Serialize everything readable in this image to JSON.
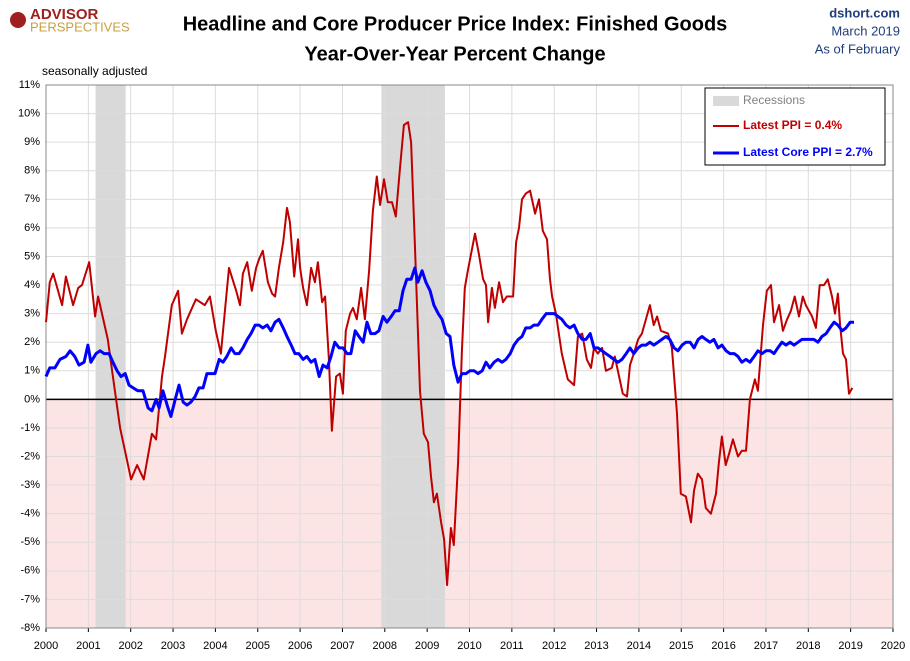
{
  "chart_data": {
    "type": "line",
    "logo": [
      "ADVISOR",
      "PERSPECTIVES"
    ],
    "title": "Headline and Core Producer Price Index: Finished Goods",
    "subtitle": "Year-Over-Year Percent Change",
    "source": [
      "dshort.com",
      "March 2019",
      "As of February"
    ],
    "note": "seasonally adjusted",
    "recession_label": "Recessions",
    "recessions": [
      [
        2001.17,
        2001.88
      ],
      [
        2007.92,
        2009.42
      ]
    ],
    "recession_color": "#d9d9d9",
    "legend": "upper right",
    "grid": true,
    "xlim": [
      2000,
      2020
    ],
    "xticks": [
      2000,
      2001,
      2002,
      2003,
      2004,
      2005,
      2006,
      2007,
      2008,
      2009,
      2010,
      2011,
      2012,
      2013,
      2014,
      2015,
      2016,
      2017,
      2018,
      2019,
      2020
    ],
    "ylim": [
      -8,
      11
    ],
    "yticks": [
      {
        "value": -8,
        "label": "-8%"
      },
      {
        "value": -7,
        "label": "-7%"
      },
      {
        "value": -6,
        "label": "-6%"
      },
      {
        "value": -5,
        "label": "-5%"
      },
      {
        "value": -4,
        "label": "-4%"
      },
      {
        "value": -3,
        "label": "-3%"
      },
      {
        "value": -2,
        "label": "-2%"
      },
      {
        "value": -1,
        "label": "-1%"
      },
      {
        "value": 0,
        "label": "0%"
      },
      {
        "value": 1,
        "label": "1%"
      },
      {
        "value": 2,
        "label": "2%"
      },
      {
        "value": 3,
        "label": "3%"
      },
      {
        "value": 4,
        "label": "4%"
      },
      {
        "value": 5,
        "label": "5%"
      },
      {
        "value": 6,
        "label": "6%"
      },
      {
        "value": 7,
        "label": "7%"
      },
      {
        "value": 8,
        "label": "8%"
      },
      {
        "value": 9,
        "label": "9%"
      },
      {
        "value": 10,
        "label": "10%"
      },
      {
        "value": 11,
        "label": "11%"
      }
    ],
    "series": [
      {
        "name": "Latest PPI = 0.4%",
        "color": "#c00000",
        "x": [
          2000,
          2000.09,
          2000.17,
          2000.38,
          2000.47,
          2000.64,
          2000.76,
          2000.85,
          2001.02,
          2001.16,
          2001.23,
          2001.46,
          2001.56,
          2001.75,
          2002.01,
          2002.15,
          2002.31,
          2002.5,
          2002.6,
          2002.74,
          2002.81,
          2002.97,
          2003.12,
          2003.21,
          2003.33,
          2003.54,
          2003.75,
          2003.87,
          2004.01,
          2004.13,
          2004.25,
          2004.32,
          2004.49,
          2004.58,
          2004.65,
          2004.75,
          2004.86,
          2004.96,
          2005.03,
          2005.12,
          2005.24,
          2005.34,
          2005.41,
          2005.5,
          2005.6,
          2005.69,
          2005.76,
          2005.86,
          2005.95,
          2006,
          2006.07,
          2006.16,
          2006.26,
          2006.35,
          2006.42,
          2006.52,
          2006.59,
          2006.68,
          2006.75,
          2006.85,
          2006.94,
          2007.01,
          2007.08,
          2007.18,
          2007.25,
          2007.34,
          2007.44,
          2007.53,
          2007.63,
          2007.72,
          2007.81,
          2007.89,
          2007.98,
          2008.07,
          2008.17,
          2008.26,
          2008.36,
          2008.45,
          2008.55,
          2008.62,
          2008.71,
          2008.83,
          2008.92,
          2009.02,
          2009.09,
          2009.16,
          2009.23,
          2009.33,
          2009.4,
          2009.47,
          2009.56,
          2009.63,
          2009.73,
          2009.82,
          2009.89,
          2009.96,
          2010.13,
          2010.22,
          2010.32,
          2010.39,
          2010.44,
          2010.53,
          2010.6,
          2010.7,
          2010.79,
          2010.88,
          2011.03,
          2011.1,
          2011.17,
          2011.24,
          2011.33,
          2011.43,
          2011.55,
          2011.64,
          2011.73,
          2011.83,
          2011.9,
          2011.95,
          2012.04,
          2012.18,
          2012.32,
          2012.47,
          2012.56,
          2012.66,
          2012.77,
          2012.87,
          2012.94,
          2013.03,
          2013.13,
          2013.22,
          2013.36,
          2013.43,
          2013.62,
          2013.72,
          2013.79,
          2013.88,
          2013.98,
          2014.07,
          2014.26,
          2014.35,
          2014.43,
          2014.52,
          2014.69,
          2014.78,
          2014.9,
          2014.99,
          2015.11,
          2015.23,
          2015.3,
          2015.39,
          2015.49,
          2015.58,
          2015.7,
          2015.82,
          2015.89,
          2015.96,
          2016.05,
          2016.13,
          2016.22,
          2016.34,
          2016.43,
          2016.53,
          2016.62,
          2016.74,
          2016.81,
          2016.93,
          2017.02,
          2017.12,
          2017.19,
          2017.31,
          2017.4,
          2017.5,
          2017.59,
          2017.68,
          2017.78,
          2017.87,
          2017.94,
          2018.09,
          2018.18,
          2018.27,
          2018.37,
          2018.46,
          2018.56,
          2018.63,
          2018.7,
          2018.75,
          2018.82,
          2018.89,
          2018.96,
          2019.04
        ],
        "values": [
          2.7,
          4.1,
          4.4,
          3.3,
          4.3,
          3.3,
          3.9,
          4.0,
          4.8,
          2.9,
          3.6,
          2.1,
          1.0,
          -1.0,
          -2.8,
          -2.3,
          -2.8,
          -1.2,
          -1.4,
          0.8,
          1.5,
          3.3,
          3.8,
          2.3,
          2.8,
          3.5,
          3.3,
          3.6,
          2.4,
          1.6,
          3.5,
          4.6,
          3.8,
          3.3,
          4.4,
          4.8,
          3.8,
          4.6,
          4.9,
          5.2,
          4.1,
          3.7,
          3.6,
          4.6,
          5.5,
          6.7,
          6.2,
          4.3,
          5.6,
          4.6,
          3.9,
          3.3,
          4.6,
          4.1,
          4.8,
          3.4,
          3.6,
          1.4,
          -1.1,
          0.8,
          0.9,
          0.2,
          2.4,
          3.0,
          3.2,
          2.8,
          3.9,
          2.8,
          4.5,
          6.6,
          7.8,
          6.8,
          7.7,
          6.9,
          6.9,
          6.4,
          8.1,
          9.6,
          9.7,
          9.0,
          5.4,
          0.3,
          -1.2,
          -1.5,
          -2.7,
          -3.6,
          -3.3,
          -4.3,
          -4.9,
          -6.5,
          -4.5,
          -5.1,
          -2.2,
          1.7,
          3.9,
          4.5,
          5.8,
          5.1,
          4.2,
          4.0,
          2.7,
          3.9,
          3.2,
          4.1,
          3.4,
          3.6,
          3.6,
          5.5,
          6.0,
          7.0,
          7.2,
          7.3,
          6.5,
          7.0,
          5.9,
          5.6,
          4.2,
          3.6,
          3.0,
          1.6,
          0.7,
          0.5,
          2.2,
          2.3,
          1.4,
          1.1,
          1.8,
          1.6,
          1.8,
          1.0,
          1.1,
          1.5,
          0.2,
          0.1,
          1.2,
          1.6,
          2.1,
          2.3,
          3.3,
          2.6,
          2.9,
          2.4,
          2.3,
          1.8,
          -0.5,
          -3.3,
          -3.4,
          -4.3,
          -3.2,
          -2.6,
          -2.8,
          -3.8,
          -4.0,
          -3.3,
          -2.2,
          -1.3,
          -2.3,
          -1.9,
          -1.4,
          -2.0,
          -1.8,
          -1.8,
          0.0,
          0.7,
          0.3,
          2.6,
          3.8,
          4.0,
          2.7,
          3.3,
          2.4,
          2.8,
          3.1,
          3.6,
          2.9,
          3.6,
          3.3,
          2.9,
          2.5,
          4.0,
          4.0,
          4.2,
          3.6,
          3.0,
          3.7,
          2.6,
          1.6,
          1.4,
          0.2,
          0.4
        ]
      },
      {
        "name": "Latest Core PPI = 2.7%",
        "color": "#0000ff",
        "x": [
          2000,
          2000.09,
          2000.21,
          2000.33,
          2000.47,
          2000.57,
          2000.68,
          2000.78,
          2000.9,
          2000.99,
          2001.06,
          2001.18,
          2001.28,
          2001.37,
          2001.49,
          2001.58,
          2001.68,
          2001.77,
          2001.87,
          2001.96,
          2002.06,
          2002.17,
          2002.29,
          2002.41,
          2002.5,
          2002.6,
          2002.67,
          2002.76,
          2002.88,
          2002.95,
          2003.05,
          2003.14,
          2003.24,
          2003.33,
          2003.42,
          2003.52,
          2003.61,
          2003.71,
          2003.8,
          2003.9,
          2003.99,
          2004.09,
          2004.18,
          2004.27,
          2004.37,
          2004.46,
          2004.56,
          2004.65,
          2004.75,
          2004.84,
          2004.94,
          2005.03,
          2005.12,
          2005.22,
          2005.31,
          2005.41,
          2005.5,
          2005.6,
          2005.69,
          2005.79,
          2005.88,
          2005.97,
          2006.07,
          2006.16,
          2006.26,
          2006.35,
          2006.45,
          2006.54,
          2006.64,
          2006.73,
          2006.82,
          2006.92,
          2007.01,
          2007.11,
          2007.2,
          2007.3,
          2007.39,
          2007.49,
          2007.58,
          2007.67,
          2007.77,
          2007.86,
          2007.96,
          2008.05,
          2008.15,
          2008.24,
          2008.34,
          2008.43,
          2008.52,
          2008.62,
          2008.71,
          2008.78,
          2008.88,
          2008.97,
          2009.07,
          2009.16,
          2009.26,
          2009.35,
          2009.45,
          2009.54,
          2009.63,
          2009.73,
          2009.82,
          2009.92,
          2010.01,
          2010.11,
          2010.2,
          2010.3,
          2010.39,
          2010.48,
          2010.58,
          2010.67,
          2010.77,
          2010.86,
          2010.96,
          2011.05,
          2011.15,
          2011.24,
          2011.33,
          2011.43,
          2011.52,
          2011.62,
          2011.71,
          2011.81,
          2011.9,
          2012,
          2012.09,
          2012.18,
          2012.28,
          2012.37,
          2012.47,
          2012.56,
          2012.66,
          2012.75,
          2012.85,
          2012.94,
          2013.03,
          2013.13,
          2013.22,
          2013.32,
          2013.41,
          2013.51,
          2013.6,
          2013.7,
          2013.79,
          2013.88,
          2013.98,
          2014.07,
          2014.17,
          2014.26,
          2014.35,
          2014.45,
          2014.54,
          2014.64,
          2014.73,
          2014.83,
          2014.92,
          2015.02,
          2015.11,
          2015.21,
          2015.3,
          2015.4,
          2015.49,
          2015.58,
          2015.68,
          2015.77,
          2015.87,
          2015.96,
          2016.06,
          2016.15,
          2016.25,
          2016.34,
          2016.43,
          2016.53,
          2016.62,
          2016.72,
          2016.81,
          2016.91,
          2017,
          2017.1,
          2017.19,
          2017.28,
          2017.38,
          2017.47,
          2017.57,
          2017.66,
          2017.76,
          2017.85,
          2017.95,
          2018.04,
          2018.13,
          2018.23,
          2018.32,
          2018.42,
          2018.51,
          2018.61,
          2018.7,
          2018.8,
          2018.89,
          2018.99,
          2019.08
        ],
        "values": [
          0.8,
          1.1,
          1.1,
          1.4,
          1.5,
          1.7,
          1.5,
          1.2,
          1.3,
          1.9,
          1.3,
          1.6,
          1.7,
          1.6,
          1.6,
          1.3,
          1.0,
          0.8,
          0.9,
          0.5,
          0.4,
          0.3,
          0.3,
          -0.3,
          -0.4,
          0.0,
          -0.3,
          0.3,
          -0.3,
          -0.6,
          0.0,
          0.5,
          -0.1,
          -0.2,
          -0.1,
          0.1,
          0.4,
          0.4,
          0.9,
          0.9,
          0.9,
          1.4,
          1.3,
          1.5,
          1.8,
          1.6,
          1.6,
          1.8,
          2.1,
          2.3,
          2.6,
          2.6,
          2.5,
          2.6,
          2.4,
          2.7,
          2.8,
          2.5,
          2.2,
          1.9,
          1.6,
          1.6,
          1.4,
          1.5,
          1.3,
          1.4,
          0.8,
          1.2,
          1.1,
          1.5,
          2.0,
          1.8,
          1.8,
          1.6,
          1.6,
          2.4,
          2.2,
          2.0,
          2.7,
          2.3,
          2.3,
          2.4,
          2.9,
          2.7,
          2.9,
          3.1,
          3.1,
          3.8,
          4.2,
          4.2,
          4.6,
          4.1,
          4.5,
          4.1,
          3.8,
          3.3,
          3.0,
          2.8,
          2.3,
          2.2,
          1.2,
          0.6,
          0.9,
          0.9,
          1.0,
          1.0,
          0.9,
          1.0,
          1.3,
          1.1,
          1.3,
          1.4,
          1.3,
          1.4,
          1.6,
          1.9,
          2.1,
          2.2,
          2.5,
          2.5,
          2.6,
          2.6,
          2.8,
          3.0,
          3.0,
          3.0,
          2.9,
          2.8,
          2.6,
          2.5,
          2.6,
          2.3,
          2.1,
          2.1,
          2.3,
          1.8,
          1.8,
          1.7,
          1.6,
          1.5,
          1.4,
          1.3,
          1.4,
          1.6,
          1.8,
          1.6,
          1.8,
          1.9,
          1.9,
          2.0,
          1.9,
          2.0,
          2.1,
          2.2,
          2.1,
          1.8,
          1.7,
          1.9,
          2.0,
          2.0,
          1.8,
          2.1,
          2.2,
          2.1,
          2.0,
          2.1,
          1.8,
          1.9,
          1.7,
          1.6,
          1.6,
          1.5,
          1.3,
          1.4,
          1.3,
          1.5,
          1.7,
          1.6,
          1.7,
          1.7,
          1.6,
          1.8,
          2.0,
          1.9,
          2.0,
          1.9,
          2.0,
          2.1,
          2.1,
          2.1,
          2.1,
          2.0,
          2.2,
          2.3,
          2.5,
          2.7,
          2.6,
          2.4,
          2.5,
          2.7,
          2.7
        ]
      }
    ]
  }
}
